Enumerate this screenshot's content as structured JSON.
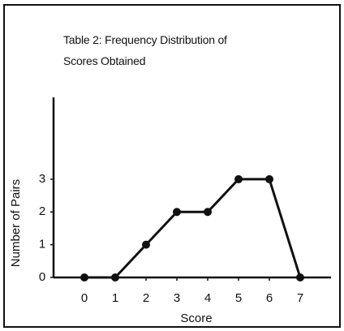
{
  "chart_data": {
    "type": "line",
    "title": "Table 2: Frequency Distribution of Scores Obtained",
    "x_label": "Score",
    "y_label": "Number of Pairs",
    "x": [
      0,
      1,
      2,
      3,
      4,
      5,
      6,
      7
    ],
    "values": [
      0,
      0,
      1,
      2,
      2,
      3,
      3,
      0
    ],
    "color": "#111111",
    "xlim": [
      -1,
      8
    ],
    "xticks": [
      0,
      1,
      2,
      3,
      4,
      5,
      6,
      7
    ],
    "ylim": [
      0,
      5.5
    ],
    "yticks": [
      0,
      1,
      2,
      3
    ],
    "grid": false
  }
}
